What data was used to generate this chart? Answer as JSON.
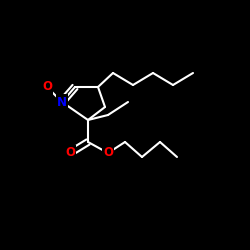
{
  "background": "#000000",
  "bond_color": "#ffffff",
  "N_color": "#0000ff",
  "O_color": "#ff0000",
  "line_width": 1.5,
  "font_size": 8.5,
  "figsize": [
    2.5,
    2.5
  ],
  "dpi": 100,
  "xlim": [
    0,
    250
  ],
  "ylim": [
    0,
    250
  ]
}
